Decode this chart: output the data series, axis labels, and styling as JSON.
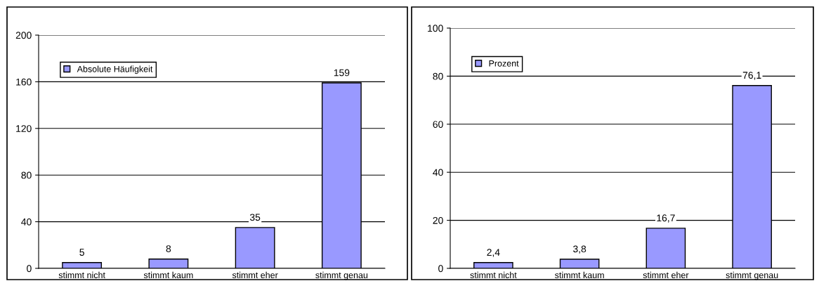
{
  "chart_data": [
    {
      "type": "bar",
      "categories": [
        "stimmt nicht",
        "stimmt kaum",
        "stimmt eher",
        "stimmt genau"
      ],
      "series": [
        {
          "name": "Absolute Häufigkeit",
          "color": "#9999ff",
          "values": [
            5,
            8,
            35,
            159
          ]
        }
      ],
      "value_labels": [
        "5",
        "8",
        "35",
        "159"
      ],
      "ylim": [
        0,
        200
      ],
      "yticks": [
        0,
        40,
        80,
        120,
        160,
        200
      ],
      "grid": "y",
      "legend": "top left"
    },
    {
      "type": "bar",
      "categories": [
        "stimmt nicht",
        "stimmt kaum",
        "stimmt eher",
        "stimmt genau"
      ],
      "series": [
        {
          "name": "Prozent",
          "color": "#9999ff",
          "values": [
            2.4,
            3.8,
            16.7,
            76.1
          ]
        }
      ],
      "value_labels": [
        "2,4",
        "3,8",
        "16,7",
        "76,1"
      ],
      "ylim": [
        0,
        100
      ],
      "yticks": [
        0,
        20,
        40,
        60,
        80,
        100
      ],
      "grid": "y",
      "legend": "top left"
    }
  ]
}
